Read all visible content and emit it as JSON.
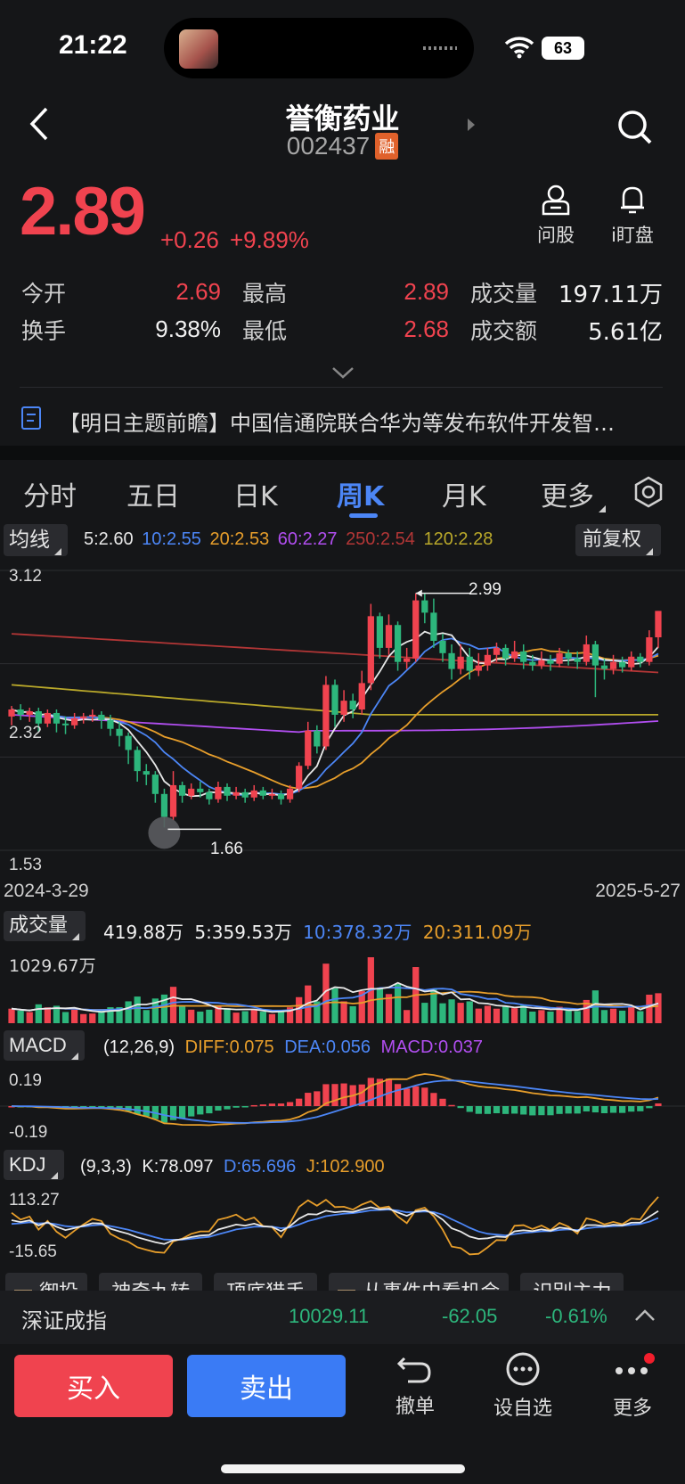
{
  "status_bar": {
    "time": "21:22",
    "battery": "63"
  },
  "header": {
    "title": "誉衡药业",
    "code": "002437",
    "margin_badge": "融"
  },
  "quote": {
    "price": "2.89",
    "change": "+0.26",
    "change_pct": "+9.89%",
    "actions": [
      {
        "label": "问股",
        "icon": "person-icon"
      },
      {
        "label": "i盯盘",
        "icon": "bell-icon"
      }
    ],
    "open_label": "今开",
    "open": "2.69",
    "high_label": "最高",
    "high": "2.89",
    "volume_label": "成交量",
    "volume": "197.11万",
    "turnover_label": "换手",
    "turnover": "9.38%",
    "low_label": "最低",
    "low": "2.68",
    "amount_label": "成交额",
    "amount": "5.61亿"
  },
  "news": {
    "text": "【明日主题前瞻】中国信通院联合华为等发布软件开发智…"
  },
  "tabs": [
    {
      "label": "分时"
    },
    {
      "label": "五日"
    },
    {
      "label": "日K"
    },
    {
      "label": "周K",
      "active": true
    },
    {
      "label": "月K"
    },
    {
      "label": "更多"
    }
  ],
  "ma_bar": {
    "selector": "均线",
    "ma5": "5:2.60",
    "ma10": "10:2.55",
    "ma20": "20:2.53",
    "ma60": "60:2.27",
    "ma250": "250:2.54",
    "ma120": "120:2.28",
    "adjust": "前复权"
  },
  "chart_data": [
    {
      "type": "candlestick",
      "ylim": [
        1.53,
        3.12
      ],
      "y_ticks": [
        "3.12",
        "2.32",
        "1.53"
      ],
      "x_range": [
        "2024-3-29",
        "2025-5-27"
      ],
      "annotations": [
        {
          "label": "2.99",
          "kind": "max"
        },
        {
          "label": "1.66",
          "kind": "min"
        }
      ],
      "series": [
        {
          "name": "MA5",
          "color": "#e8e8e8"
        },
        {
          "name": "MA10",
          "color": "#4c86f6"
        },
        {
          "name": "MA20",
          "color": "#e79e2b"
        },
        {
          "name": "MA60",
          "color": "#b14ef0"
        },
        {
          "name": "MA120",
          "color": "#b9a82a"
        },
        {
          "name": "MA250",
          "color": "#b23636"
        }
      ],
      "candles": [
        [
          2.29,
          2.33,
          2.35,
          2.24
        ],
        [
          2.33,
          2.3,
          2.36,
          2.27
        ],
        [
          2.3,
          2.32,
          2.34,
          2.26
        ],
        [
          2.32,
          2.25,
          2.34,
          2.2
        ],
        [
          2.25,
          2.31,
          2.33,
          2.23
        ],
        [
          2.31,
          2.25,
          2.33,
          2.2
        ],
        [
          2.25,
          2.24,
          2.29,
          2.19
        ],
        [
          2.24,
          2.28,
          2.31,
          2.22
        ],
        [
          2.28,
          2.29,
          2.31,
          2.25
        ],
        [
          2.29,
          2.3,
          2.33,
          2.26
        ],
        [
          2.3,
          2.27,
          2.32,
          2.22
        ],
        [
          2.27,
          2.22,
          2.3,
          2.18
        ],
        [
          2.22,
          2.18,
          2.26,
          2.12
        ],
        [
          2.18,
          2.1,
          2.2,
          2.02
        ],
        [
          2.1,
          1.98,
          2.12,
          1.92
        ],
        [
          1.98,
          1.96,
          2.02,
          1.9
        ],
        [
          1.96,
          1.85,
          1.98,
          1.8
        ],
        [
          1.85,
          1.72,
          1.88,
          1.66
        ],
        [
          1.72,
          1.9,
          1.98,
          1.7
        ],
        [
          1.9,
          1.84,
          1.92,
          1.8
        ],
        [
          1.84,
          1.88,
          1.91,
          1.82
        ],
        [
          1.88,
          1.86,
          1.92,
          1.83
        ],
        [
          1.86,
          1.82,
          1.88,
          1.79
        ],
        [
          1.82,
          1.89,
          1.92,
          1.8
        ],
        [
          1.89,
          1.84,
          1.91,
          1.81
        ],
        [
          1.84,
          1.86,
          1.89,
          1.82
        ],
        [
          1.86,
          1.83,
          1.88,
          1.8
        ],
        [
          1.83,
          1.87,
          1.9,
          1.81
        ],
        [
          1.87,
          1.84,
          1.89,
          1.82
        ],
        [
          1.84,
          1.85,
          1.88,
          1.82
        ],
        [
          1.85,
          1.82,
          1.87,
          1.79
        ],
        [
          1.82,
          1.88,
          1.9,
          1.8
        ],
        [
          1.88,
          2.01,
          2.03,
          1.86
        ],
        [
          2.01,
          2.21,
          2.26,
          1.99
        ],
        [
          2.21,
          2.12,
          2.24,
          2.08
        ],
        [
          2.12,
          2.47,
          2.52,
          2.1
        ],
        [
          2.47,
          2.3,
          2.5,
          2.23
        ],
        [
          2.3,
          2.38,
          2.44,
          2.26
        ],
        [
          2.38,
          2.33,
          2.42,
          2.28
        ],
        [
          2.33,
          2.48,
          2.55,
          2.3
        ],
        [
          2.48,
          2.86,
          2.93,
          2.44
        ],
        [
          2.86,
          2.68,
          2.88,
          2.62
        ],
        [
          2.68,
          2.81,
          2.87,
          2.64
        ],
        [
          2.81,
          2.6,
          2.83,
          2.55
        ],
        [
          2.6,
          2.62,
          2.68,
          2.56
        ],
        [
          2.62,
          2.95,
          2.99,
          2.6
        ],
        [
          2.95,
          2.88,
          2.99,
          2.82
        ],
        [
          2.88,
          2.72,
          2.96,
          2.68
        ],
        [
          2.72,
          2.65,
          2.76,
          2.6
        ],
        [
          2.65,
          2.56,
          2.7,
          2.5
        ],
        [
          2.56,
          2.63,
          2.7,
          2.53
        ],
        [
          2.63,
          2.55,
          2.68,
          2.5
        ],
        [
          2.55,
          2.58,
          2.65,
          2.52
        ],
        [
          2.58,
          2.64,
          2.68,
          2.55
        ],
        [
          2.64,
          2.68,
          2.71,
          2.6
        ],
        [
          2.68,
          2.62,
          2.7,
          2.58
        ],
        [
          2.62,
          2.66,
          2.72,
          2.6
        ],
        [
          2.66,
          2.6,
          2.7,
          2.56
        ],
        [
          2.6,
          2.58,
          2.64,
          2.55
        ],
        [
          2.58,
          2.61,
          2.66,
          2.56
        ],
        [
          2.61,
          2.59,
          2.64,
          2.55
        ],
        [
          2.59,
          2.65,
          2.68,
          2.57
        ],
        [
          2.65,
          2.62,
          2.67,
          2.58
        ],
        [
          2.62,
          2.6,
          2.66,
          2.56
        ],
        [
          2.6,
          2.7,
          2.75,
          2.58
        ],
        [
          2.7,
          2.58,
          2.72,
          2.4
        ],
        [
          2.58,
          2.56,
          2.62,
          2.5
        ],
        [
          2.56,
          2.6,
          2.64,
          2.53
        ],
        [
          2.6,
          2.57,
          2.63,
          2.54
        ],
        [
          2.57,
          2.63,
          2.66,
          2.55
        ],
        [
          2.63,
          2.6,
          2.65,
          2.57
        ],
        [
          2.6,
          2.74,
          2.78,
          2.58
        ],
        [
          2.74,
          2.89,
          2.89,
          2.68
        ]
      ]
    },
    {
      "type": "bar",
      "title": "成交量",
      "legend": {
        "last": "419.88万",
        "ma5": "5:359.53万",
        "ma10": "10:378.32万",
        "ma20": "20:311.09万"
      },
      "y_max_label": "1029.67万"
    },
    {
      "type": "bar",
      "title": "MACD",
      "params": "(12,26,9)",
      "legend": {
        "diff": "DIFF:0.075",
        "dea": "DEA:0.056",
        "macd": "MACD:0.037"
      },
      "y_ticks": [
        "0.19",
        "-0.19"
      ]
    },
    {
      "type": "line",
      "title": "KDJ",
      "params": "(9,3,3)",
      "legend": {
        "k": "K:78.097",
        "d": "D:65.696",
        "j": "J:102.900"
      },
      "y_ticks": [
        "113.27",
        "-15.65"
      ]
    }
  ],
  "feature_tags": [
    "御投",
    "神奇九转",
    "顶底猎手",
    "从事件中看机会",
    "识别主力"
  ],
  "index_bar": {
    "name": "深证成指",
    "value": "10029.11",
    "change": "-62.05",
    "change_pct": "-0.61%"
  },
  "bottom_bar": {
    "buy": "买入",
    "sell": "卖出",
    "undo": "撤单",
    "watch": "设自选",
    "more": "更多"
  }
}
